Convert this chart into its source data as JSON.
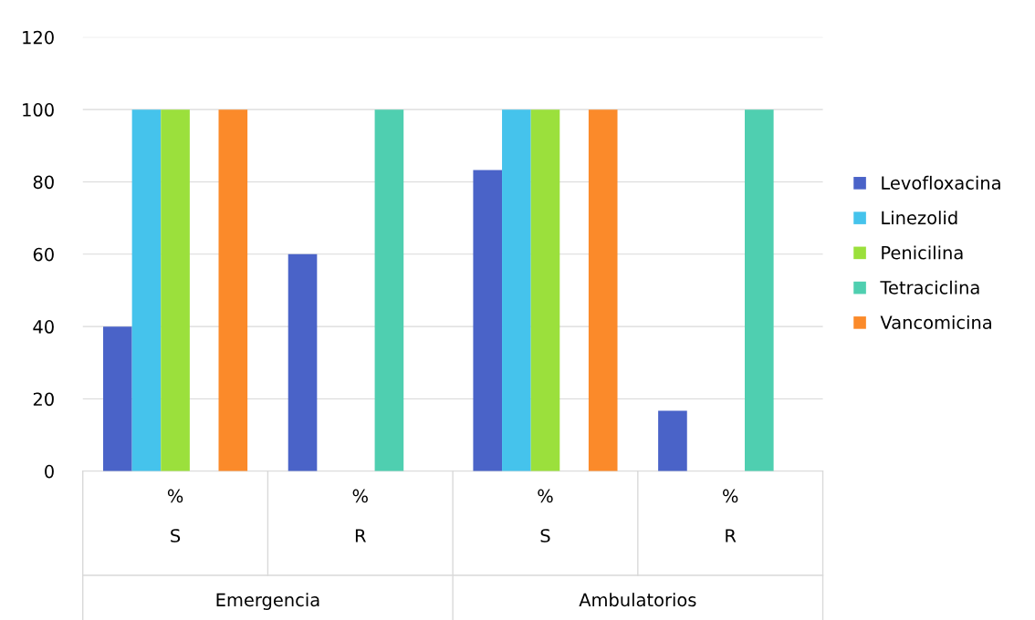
{
  "chart_data": {
    "type": "bar",
    "categories": [
      "%\n\nS",
      "%\n\nR",
      "%\n\nS",
      "%\n\nR"
    ],
    "series": [
      {
        "name": "Levofloxacina",
        "color": "#4a63c8",
        "values": [
          40,
          60,
          83.3,
          16.7
        ]
      },
      {
        "name": "Linezolid",
        "color": "#45c3ec",
        "values": [
          100,
          0,
          100,
          0
        ]
      },
      {
        "name": "Penicilina",
        "color": "#9be03c",
        "values": [
          100,
          0,
          100,
          0
        ]
      },
      {
        "name": "Tetraciclina",
        "color": "#4fcfb0",
        "values": [
          0,
          100,
          0,
          100
        ]
      },
      {
        "name": "Vancomicina",
        "color": "#fb8a2a",
        "values": [
          100,
          0,
          100,
          0
        ]
      }
    ],
    "annotations": [
      "Emergencia",
      "Ambulatorios"
    ],
    "ylim": [
      0,
      120
    ],
    "yticks": [
      0,
      20,
      40,
      60,
      80,
      100,
      120
    ],
    "grid": "y",
    "legend": "right"
  }
}
